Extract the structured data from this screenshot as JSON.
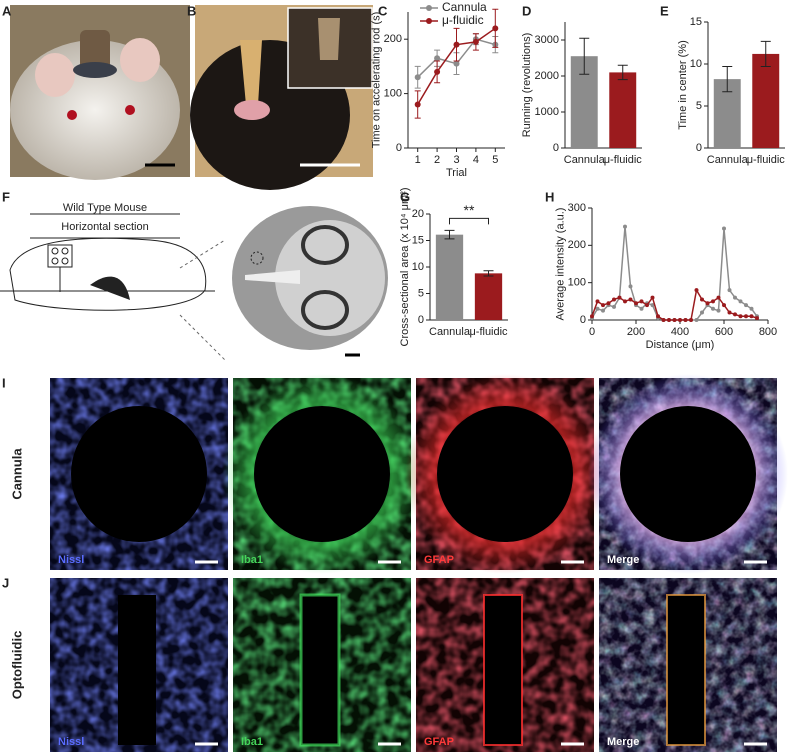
{
  "panel_labels": [
    "A",
    "B",
    "C",
    "D",
    "E",
    "F",
    "G",
    "H",
    "I",
    "J"
  ],
  "diagram": {
    "title": "Wild Type Mouse",
    "subtitle": "Horizontal section"
  },
  "micrographs": {
    "rows": [
      "Cannula",
      "Optofluidic"
    ],
    "stains": [
      "Nissl",
      "Iba1",
      "GFAP",
      "Merge"
    ]
  },
  "chart_data": [
    {
      "type": "line",
      "ylabel": "Time on accelerating rod (s)",
      "xlabel": "Trial",
      "x": [
        1,
        2,
        3,
        4,
        5
      ],
      "xlim": [
        0.5,
        5.5
      ],
      "xticks": [
        1,
        2,
        3,
        4,
        5
      ],
      "ylim": [
        0,
        250
      ],
      "yticks": [
        0,
        100,
        200
      ],
      "legend": "top",
      "series": [
        {
          "name": "Cannula",
          "color": "#8c8c8c",
          "values": [
            130,
            165,
            155,
            200,
            190
          ],
          "errors": [
            20,
            15,
            20,
            10,
            15
          ]
        },
        {
          "name": "μ-fluidic",
          "color": "#9b1b1e",
          "values": [
            80,
            140,
            190,
            195,
            220
          ],
          "errors": [
            25,
            20,
            30,
            15,
            35
          ]
        }
      ]
    },
    {
      "type": "bar",
      "ylabel": "Running (revolutions)",
      "categories": [
        "Cannula",
        "μ-fluidic"
      ],
      "values": [
        2550,
        2100
      ],
      "errors": [
        500,
        200
      ],
      "colors": [
        "#8c8c8c",
        "#9b1b1e"
      ],
      "ylim": [
        0,
        3500
      ],
      "yticks": [
        0,
        1000,
        2000,
        3000
      ]
    },
    {
      "type": "bar",
      "ylabel": "Time in center (%)",
      "categories": [
        "Cannula",
        "μ-fluidic"
      ],
      "values": [
        8.2,
        11.2
      ],
      "errors": [
        1.5,
        1.5
      ],
      "colors": [
        "#8c8c8c",
        "#9b1b1e"
      ],
      "ylim": [
        0,
        15
      ],
      "yticks": [
        0,
        5,
        10,
        15
      ]
    },
    {
      "type": "bar",
      "ylabel": "Cross-sectional area (x 10⁴ μm²)",
      "categories": [
        "Cannula",
        "μ-fluidic"
      ],
      "values": [
        16.1,
        8.8
      ],
      "errors": [
        0.8,
        0.5
      ],
      "colors": [
        "#8c8c8c",
        "#9b1b1e"
      ],
      "ylim": [
        0,
        20
      ],
      "yticks": [
        0,
        5,
        10,
        15,
        20
      ],
      "annotation": "**"
    },
    {
      "type": "line",
      "ylabel": "Average intensity (a.u.)",
      "xlabel": "Distance (μm)",
      "x": [
        0,
        25,
        50,
        75,
        100,
        125,
        150,
        175,
        200,
        225,
        250,
        275,
        300,
        325,
        350,
        375,
        400,
        425,
        450,
        475,
        500,
        525,
        550,
        575,
        600,
        625,
        650,
        675,
        700,
        725,
        750
      ],
      "xlim": [
        0,
        800
      ],
      "xticks": [
        0,
        200,
        400,
        600,
        800
      ],
      "ylim": [
        0,
        300
      ],
      "yticks": [
        0,
        100,
        200,
        300
      ],
      "series": [
        {
          "name": "Cannula",
          "color": "#8c8c8c",
          "values": [
            5,
            30,
            25,
            40,
            35,
            60,
            250,
            90,
            40,
            30,
            45,
            40,
            5,
            0,
            0,
            0,
            0,
            0,
            0,
            0,
            20,
            40,
            30,
            25,
            245,
            80,
            60,
            50,
            40,
            30,
            10
          ]
        },
        {
          "name": "μ-fluidic",
          "color": "#9b1b1e",
          "values": [
            10,
            50,
            40,
            45,
            55,
            60,
            50,
            55,
            45,
            50,
            40,
            60,
            10,
            0,
            0,
            0,
            0,
            0,
            0,
            80,
            55,
            45,
            50,
            60,
            40,
            20,
            15,
            10,
            10,
            10,
            5
          ]
        }
      ]
    }
  ]
}
